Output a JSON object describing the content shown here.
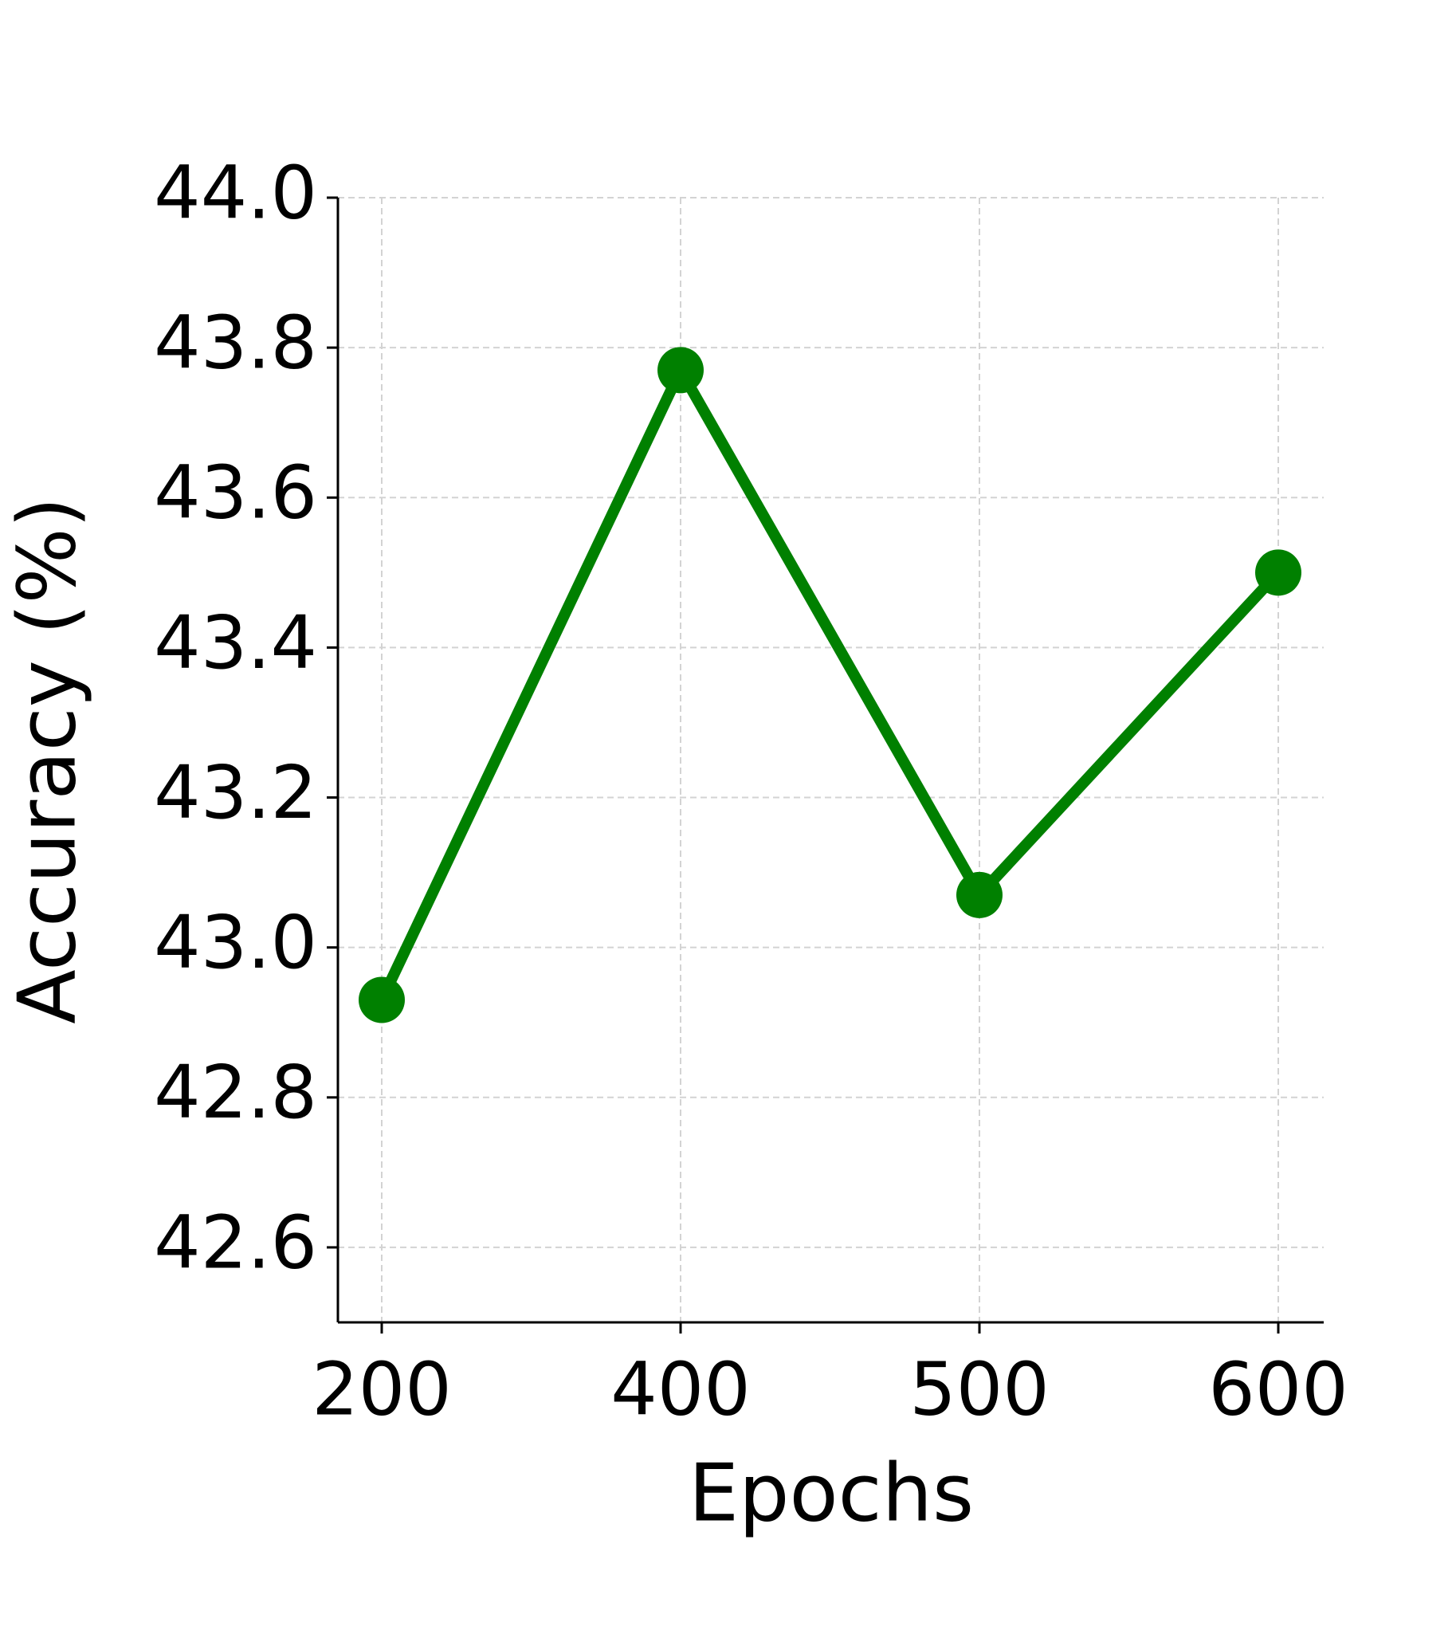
{
  "chart_data": {
    "type": "line",
    "x_label": "Epochs",
    "y_label": "Accuracy (%)",
    "categories": [
      "200",
      "400",
      "500",
      "600"
    ],
    "series": [
      {
        "color": "#008000",
        "values": [
          42.93,
          43.77,
          43.07,
          43.5
        ]
      }
    ],
    "ylim": [
      42.5,
      44.0
    ],
    "yticks": [
      {
        "value": 42.6,
        "label": "42.6"
      },
      {
        "value": 42.8,
        "label": "42.8"
      },
      {
        "value": 43.0,
        "label": "43.0"
      },
      {
        "value": 43.2,
        "label": "43.2"
      },
      {
        "value": 43.4,
        "label": "43.4"
      },
      {
        "value": 43.6,
        "label": "43.6"
      },
      {
        "value": 43.8,
        "label": "43.8"
      },
      {
        "value": 44.0,
        "label": "44.0"
      }
    ],
    "grid": true,
    "markers": true
  }
}
